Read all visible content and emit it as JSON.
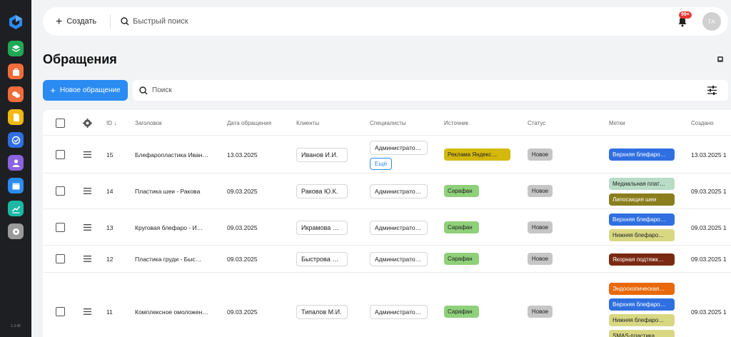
{
  "sidebar": {
    "version": "1.3.46",
    "items": [
      {
        "name": "layers-icon",
        "color": "#1fa855"
      },
      {
        "name": "shopping-bag-icon",
        "color": "#f06d3a"
      },
      {
        "name": "chat-icon",
        "color": "#f06d3a"
      },
      {
        "name": "document-icon",
        "color": "#f2b90f"
      },
      {
        "name": "check-circle-icon",
        "color": "#2f6fe0"
      },
      {
        "name": "user-icon",
        "color": "#8a63e0"
      },
      {
        "name": "calendar-icon",
        "color": "#2a8bf2"
      },
      {
        "name": "analytics-icon",
        "color": "#1cb8a4"
      },
      {
        "name": "settings-icon",
        "color": "#9a9a9a"
      }
    ]
  },
  "topbar": {
    "create_label": "Создать",
    "search_placeholder": "Быстрый поиск",
    "notifications_badge": "99+",
    "avatar_initials": "ГА"
  },
  "page": {
    "title": "Обращения",
    "new_button_label": "Новое обращение",
    "search_placeholder": "Поиск"
  },
  "table": {
    "headers": {
      "id": "ID",
      "title": "Заголовок",
      "date": "Дата обращения",
      "clients": "Клиенты",
      "specialists": "Специалисты",
      "source": "Источник",
      "status": "Статус",
      "marks": "Метки",
      "created": "Создано"
    },
    "more_label": "Ещё",
    "rows": [
      {
        "id": "15",
        "title": "Блефаропластика Иван…",
        "date": "13.03.2025",
        "client": "Иванов И.И.",
        "specialist": "Администрато…",
        "has_more": true,
        "source": "Реклама Яндекс…",
        "source_color": "#d4b80c",
        "status": "Новое",
        "marks": [
          {
            "label": "Верхняя блефаро…",
            "bg": "#2f6fe0",
            "fg": "#ffffff"
          }
        ],
        "created": "13.03.2025 1"
      },
      {
        "id": "14",
        "title": "Пластика шеи - Ракова",
        "date": "09.03.2025",
        "client": "Ракова Ю.К.",
        "specialist": "Администрато…",
        "has_more": false,
        "source": "Сарафан",
        "source_color": "#8fd07a",
        "status": "Новое",
        "marks": [
          {
            "label": "Медиальная плат…",
            "bg": "#b8dcc6",
            "fg": "#222222"
          },
          {
            "label": "Липосакция шеи",
            "bg": "#8a7e1d",
            "fg": "#ffffff"
          }
        ],
        "created": "09.03.2025 1"
      },
      {
        "id": "13",
        "title": "Круговая блефаро - И…",
        "date": "09.03.2025",
        "client": "Икрамова А…",
        "specialist": "Администрато…",
        "has_more": false,
        "source": "Сарафан",
        "source_color": "#8fd07a",
        "status": "Новое",
        "marks": [
          {
            "label": "Верхняя блефаро…",
            "bg": "#2f6fe0",
            "fg": "#ffffff"
          },
          {
            "label": "Нижняя блефаро…",
            "bg": "#d8d883",
            "fg": "#222222"
          }
        ],
        "created": "09.03.2025 1"
      },
      {
        "id": "12",
        "title": "Пластика груди - Быс…",
        "date": "09.03.2025",
        "client": "Быстрова С…",
        "specialist": "Администрато…",
        "has_more": false,
        "source": "Сарафан",
        "source_color": "#8fd07a",
        "status": "Новое",
        "marks": [
          {
            "label": "Якорная подтяжк…",
            "bg": "#7a2a12",
            "fg": "#ffffff"
          }
        ],
        "created": "09.03.2025 1"
      },
      {
        "id": "11",
        "title": "Комплексное омоложен…",
        "date": "09.03.2025",
        "client": "Типалов М.И.",
        "specialist": "Администрато…",
        "has_more": false,
        "source": "Сарафан",
        "source_color": "#8fd07a",
        "status": "Новое",
        "marks": [
          {
            "label": "Эндоскопическая…",
            "bg": "#e8690b",
            "fg": "#ffffff"
          },
          {
            "label": "Верхняя блефаро…",
            "bg": "#2f6fe0",
            "fg": "#ffffff"
          },
          {
            "label": "Нижняя блефаро…",
            "bg": "#d8d883",
            "fg": "#222222"
          },
          {
            "label": "SMAS-пластика …",
            "bg": "#d8d883",
            "fg": "#222222"
          }
        ],
        "created": "09.03.2025 1"
      }
    ]
  }
}
